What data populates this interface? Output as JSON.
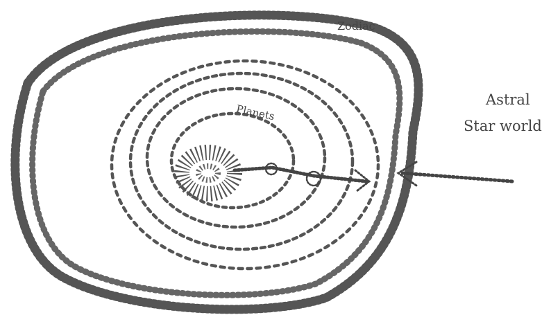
{
  "labels": {
    "zodiac": "Zodiac",
    "planets": "Planets",
    "astral_line1": "Astral",
    "astral_line2": "Star world"
  },
  "colors": {
    "ink": "#555555",
    "ink_dark": "#333333",
    "text": "#444444",
    "background": "#ffffff"
  }
}
